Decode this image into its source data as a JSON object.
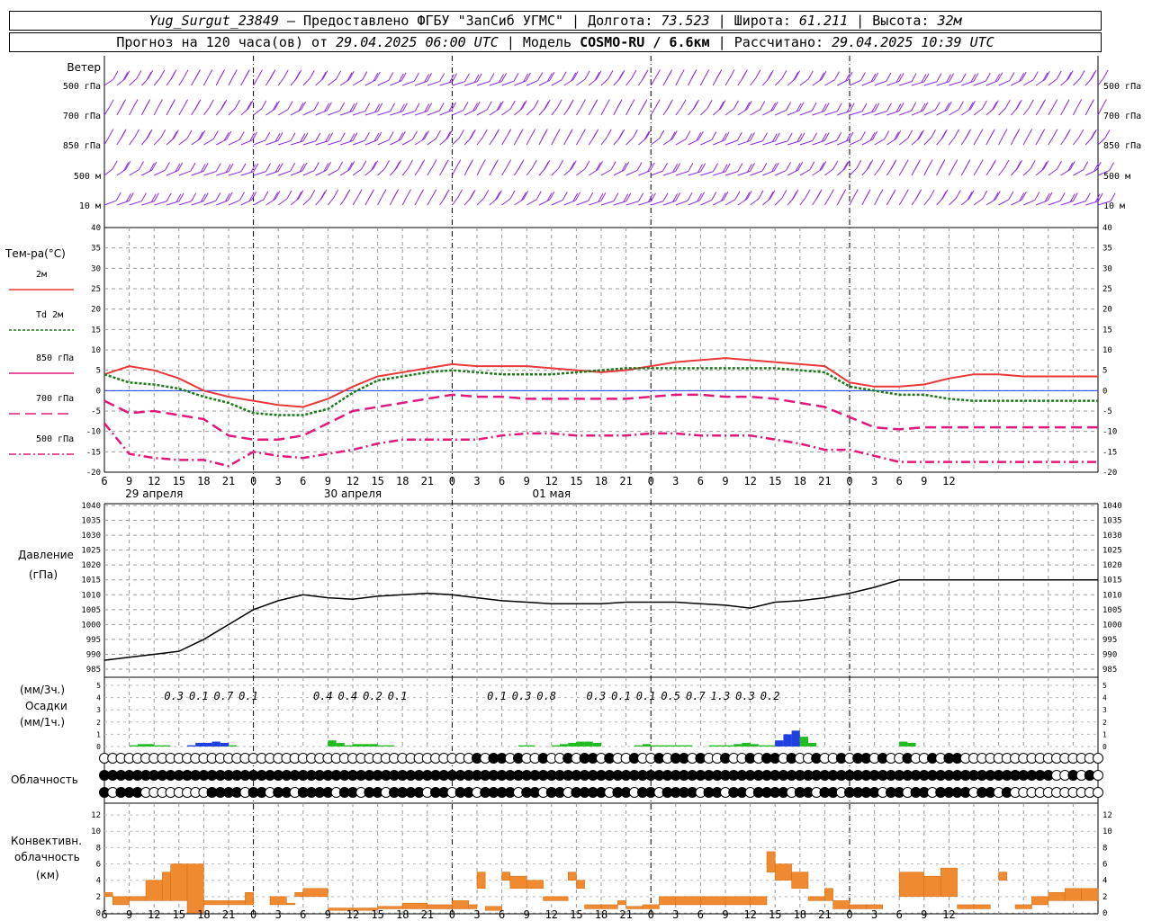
{
  "header": {
    "station": "Yug_Surgut_23849",
    "provider": "Предоставлено ФГБУ \"ЗапСиб УГМС\"",
    "lon_label": "Долгота:",
    "lon": "73.523",
    "lat_label": "Широта:",
    "lat": "61.211",
    "alt_label": "Высота:",
    "alt": "32м",
    "forecast_label": "Прогноз на 120 часа(ов) от",
    "forecast_start": "29.04.2025 06:00 UTC",
    "model_label": "Модель",
    "model": "COSMO-RU / 6.6км",
    "calc_label": "Рассчитано:",
    "calc_time": "29.04.2025 10:39 UTC"
  },
  "wind_panel": {
    "title": "Ветер",
    "levels": [
      "500 гПа",
      "700 гПа",
      "850 гПа",
      "500 м",
      "10  м"
    ]
  },
  "temp_panel": {
    "title": "Тем-ра(°C)",
    "legend": [
      "2м",
      "Td  2м",
      "850 гПа",
      "700 гПа",
      "500 гПа"
    ]
  },
  "pressure_panel": {
    "title": "Давление",
    "unit": "(гПа)"
  },
  "precip_panel": {
    "unit_3h": "(мм/3ч.)",
    "title": "Осадки",
    "unit_1h": "(мм/1ч.)"
  },
  "cloud_panel": {
    "title": "Облачность"
  },
  "conv_panel": {
    "title_1": "Конвективн.",
    "title_2": "облачность",
    "unit": "(км)"
  },
  "dates": [
    "29 апреля",
    "30 апреля",
    "01 мая"
  ],
  "colors": {
    "t2m": "#e8383a",
    "td": "#1a7a1a",
    "t850": "#e0187a",
    "t700": "#e0187a",
    "t500": "#e0187a",
    "wind": "#8a2be2",
    "pressure": "#000000",
    "precip_green": "#22bb22",
    "precip_blue": "#1f3fe0",
    "conv": "#f08a30",
    "zero_line": "#1f3fe0"
  },
  "chart_data": [
    {
      "type": "line",
      "name": "temperature",
      "x_hours": [
        0,
        3,
        6,
        9,
        12,
        15,
        18,
        21,
        24,
        27,
        30,
        33,
        36,
        39,
        42,
        45,
        48,
        51,
        54,
        57,
        60,
        63,
        66,
        69,
        72,
        75,
        78,
        81,
        84,
        87,
        90,
        93,
        96,
        99,
        102,
        105,
        108,
        111,
        114,
        117,
        120
      ],
      "x_tick_labels": [
        "6",
        "9",
        "12",
        "15",
        "18",
        "21",
        "0",
        "3",
        "6",
        "9",
        "12",
        "15",
        "18",
        "21",
        "0",
        "3",
        "6",
        "9",
        "12",
        "15",
        "18",
        "21",
        "0",
        "3",
        "6",
        "9",
        "12",
        "15",
        "18",
        "21",
        "0",
        "3",
        "6",
        "9",
        "12"
      ],
      "ylim": [
        -20,
        40
      ],
      "yticks": [
        -20,
        -15,
        -10,
        -5,
        0,
        5,
        10,
        15,
        20,
        25,
        30,
        35,
        40
      ],
      "series": [
        {
          "name": "2м",
          "values": [
            4,
            6,
            5,
            3,
            0,
            -1.5,
            -2.5,
            -3.5,
            -4,
            -2,
            1,
            3.5,
            4.5,
            5.5,
            6.5,
            6,
            6,
            6,
            5.5,
            5,
            4.5,
            5,
            6,
            7,
            7.5,
            8,
            7.5,
            7,
            6.5,
            6,
            2,
            1,
            1,
            1.5,
            3,
            4,
            4,
            3.5,
            3.5,
            3.5,
            3.5
          ]
        },
        {
          "name": "Td  2м",
          "values": [
            4,
            2,
            1.5,
            0.5,
            -1.5,
            -3,
            -5.5,
            -6,
            -6,
            -4.5,
            -0.5,
            2.5,
            3.5,
            4.5,
            5,
            4.5,
            4,
            4,
            4,
            4.5,
            5,
            5.5,
            5.5,
            5.5,
            5.5,
            5.5,
            5.5,
            5.5,
            5,
            4.5,
            1,
            0,
            -1,
            -1,
            -2,
            -2.5,
            -2.5,
            -2.5,
            -2.5,
            -2.5,
            -2.5
          ]
        },
        {
          "name": "850 гПа",
          "values": [
            -2.5,
            -5.5,
            -5,
            -6,
            -7,
            -11,
            -12,
            -12,
            -11,
            -8,
            -5,
            -4,
            -3,
            -2,
            -1,
            -1.5,
            -1.5,
            -2,
            -2,
            -2,
            -2,
            -2,
            -1.5,
            -1,
            -1,
            -1.5,
            -1.5,
            -2,
            -3,
            -4,
            -6.5,
            -9,
            -9.5,
            -9,
            -9,
            -9,
            -9,
            -9,
            -9,
            -9,
            -9
          ]
        },
        {
          "name": "700 гПа",
          "values": [
            -8,
            -15.5,
            -16.5,
            -17,
            -17,
            -18.5,
            -15,
            -16,
            -16.5,
            -15.5,
            -14.5,
            -13,
            -12,
            -12,
            -12,
            -12,
            -11,
            -10.5,
            -10.5,
            -11,
            -11,
            -11,
            -10.5,
            -10.5,
            -11,
            -11,
            -11,
            -12,
            -13,
            -14.5,
            -14.5,
            -16,
            -17.5,
            -17.5,
            -17.5,
            -17.5,
            -17.5,
            -17.5,
            -17.5,
            -17.5,
            -17.5
          ]
        }
      ]
    },
    {
      "type": "line",
      "name": "pressure",
      "x_hours": [
        0,
        3,
        6,
        9,
        12,
        15,
        18,
        21,
        24,
        27,
        30,
        33,
        36,
        39,
        42,
        45,
        48,
        51,
        54,
        57,
        60,
        63,
        66,
        69,
        72,
        75,
        78,
        81,
        84,
        87,
        90,
        93,
        96,
        99,
        102,
        105,
        108,
        111,
        114,
        117,
        120
      ],
      "ylim": [
        985,
        1040
      ],
      "yticks": [
        985,
        990,
        995,
        1000,
        1005,
        1010,
        1015,
        1020,
        1025,
        1030,
        1035,
        1040
      ],
      "values": [
        988,
        989,
        990,
        991,
        995,
        1000,
        1005,
        1008,
        1010,
        1009,
        1008.5,
        1009.5,
        1010,
        1010.5,
        1010,
        1009,
        1008,
        1007.5,
        1007,
        1007,
        1007,
        1007.5,
        1007.5,
        1007.5,
        1007,
        1006.5,
        1005.5,
        1007.5,
        1008,
        1009,
        1010.5,
        1012.5,
        1015,
        1015,
        1015,
        1015,
        1015,
        1015,
        1015,
        1015,
        1015
      ]
    },
    {
      "type": "bar",
      "name": "precipitation",
      "ylim": [
        0,
        5
      ],
      "yticks": [
        0,
        1,
        2,
        3,
        4,
        5
      ],
      "totals_3h": [
        "0.3",
        "0.1",
        "0.7",
        "0.1",
        "0.4",
        "0.4",
        "0.2",
        "0.1",
        "0.1",
        "0.3",
        "0.8",
        "0.3",
        "0.1",
        "0.1",
        "0.5",
        "0.7",
        "1.3",
        "0.3",
        "0.2"
      ],
      "total_hours": [
        6,
        9,
        12,
        15,
        24,
        27,
        30,
        33,
        45,
        48,
        51,
        57,
        60,
        63,
        66,
        69,
        72,
        75,
        78
      ],
      "hourly_values": [
        0,
        0,
        0,
        0.1,
        0.2,
        0.2,
        0.1,
        0.1,
        0,
        0,
        0.1,
        0.3,
        0.3,
        0.4,
        0.3,
        0.1,
        0,
        0,
        0,
        0,
        0,
        0,
        0,
        0,
        0,
        0,
        0,
        0.5,
        0.3,
        0.1,
        0.2,
        0.2,
        0.2,
        0.1,
        0.1,
        0,
        0,
        0,
        0,
        0,
        0,
        0,
        0,
        0,
        0,
        0,
        0,
        0,
        0,
        0,
        0.1,
        0.1,
        0,
        0,
        0.1,
        0.2,
        0.3,
        0.4,
        0.4,
        0.3,
        0,
        0,
        0,
        0,
        0.1,
        0.2,
        0.1,
        0.1,
        0.1,
        0.1,
        0.1,
        0,
        0,
        0.1,
        0.1,
        0.1,
        0.2,
        0.3,
        0.2,
        0.1,
        0.1,
        0.5,
        1,
        1.3,
        0.8,
        0.3,
        0,
        0,
        0,
        0,
        0,
        0,
        0,
        0,
        0,
        0,
        0.4,
        0.3,
        0,
        0,
        0,
        0,
        0,
        0,
        0,
        0,
        0,
        0,
        0,
        0,
        0,
        0,
        0,
        0,
        0,
        0,
        0,
        0,
        0,
        0
      ],
      "blue_ranges_hours": [
        [
          8,
          15
        ],
        [
          21,
          24
        ],
        [
          81,
          84
        ]
      ]
    },
    {
      "type": "bar",
      "name": "convective_cloud",
      "ylim": [
        0,
        13
      ],
      "yticks": [
        0,
        2,
        4,
        6,
        8,
        10,
        12
      ],
      "bars": [
        [
          0,
          1,
          2,
          2.5
        ],
        [
          1,
          3,
          1,
          2
        ],
        [
          3,
          5,
          1.5,
          2
        ],
        [
          5,
          7,
          1.5,
          4
        ],
        [
          7,
          8,
          1.5,
          5
        ],
        [
          8,
          10,
          1.5,
          6
        ],
        [
          10,
          12,
          0,
          6
        ],
        [
          12,
          15,
          1,
          1.5
        ],
        [
          15,
          17,
          1,
          1.5
        ],
        [
          17,
          18,
          1,
          2.5
        ],
        [
          20,
          22,
          1,
          2
        ],
        [
          22,
          23,
          1,
          1.2
        ],
        [
          23,
          24,
          2,
          2.5
        ],
        [
          24,
          27,
          2,
          3
        ],
        [
          27,
          30,
          0.3,
          0.6
        ],
        [
          30,
          33,
          0.3,
          0.6
        ],
        [
          33,
          36,
          0.5,
          0.8
        ],
        [
          36,
          39,
          0.5,
          1.2
        ],
        [
          39,
          42,
          0.5,
          1
        ],
        [
          42,
          44,
          0.5,
          1.5
        ],
        [
          44,
          45,
          0.5,
          1
        ],
        [
          45,
          46,
          3,
          5
        ],
        [
          46,
          48,
          0.3,
          0.8
        ],
        [
          48,
          49,
          4,
          5
        ],
        [
          49,
          51,
          3,
          4.5
        ],
        [
          51,
          53,
          3,
          4
        ],
        [
          53,
          56,
          1.5,
          2
        ],
        [
          56,
          57,
          4,
          5
        ],
        [
          57,
          58,
          3,
          4
        ],
        [
          58,
          60,
          0.5,
          1
        ],
        [
          60,
          62,
          0.5,
          1
        ],
        [
          62,
          63,
          1,
          1.5
        ],
        [
          63,
          65,
          0.5,
          0.8
        ],
        [
          65,
          67,
          0.5,
          1
        ],
        [
          67,
          69,
          1,
          2
        ],
        [
          69,
          72,
          1,
          2
        ],
        [
          72,
          75,
          1,
          2
        ],
        [
          75,
          78,
          1,
          2
        ],
        [
          78,
          80,
          1,
          2
        ],
        [
          80,
          81,
          5,
          7.5
        ],
        [
          81,
          83,
          4,
          6
        ],
        [
          83,
          85,
          3,
          5
        ],
        [
          85,
          87,
          1.5,
          2
        ],
        [
          87,
          88,
          1.5,
          3
        ],
        [
          88,
          90,
          0.5,
          1.5
        ],
        [
          90,
          92,
          0.5,
          1
        ],
        [
          92,
          94,
          0.5,
          1
        ],
        [
          96,
          99,
          2,
          5
        ],
        [
          99,
          101,
          2,
          4.5
        ],
        [
          101,
          103,
          2,
          5.5
        ],
        [
          103,
          105,
          0.5,
          1
        ],
        [
          105,
          107,
          0.5,
          1
        ],
        [
          108,
          109,
          4,
          5
        ],
        [
          110,
          112,
          0.5,
          1
        ],
        [
          112,
          114,
          1,
          2
        ],
        [
          114,
          116,
          1.5,
          2.5
        ],
        [
          116,
          118,
          1.5,
          3
        ],
        [
          118,
          120,
          1.5,
          3
        ]
      ]
    }
  ]
}
